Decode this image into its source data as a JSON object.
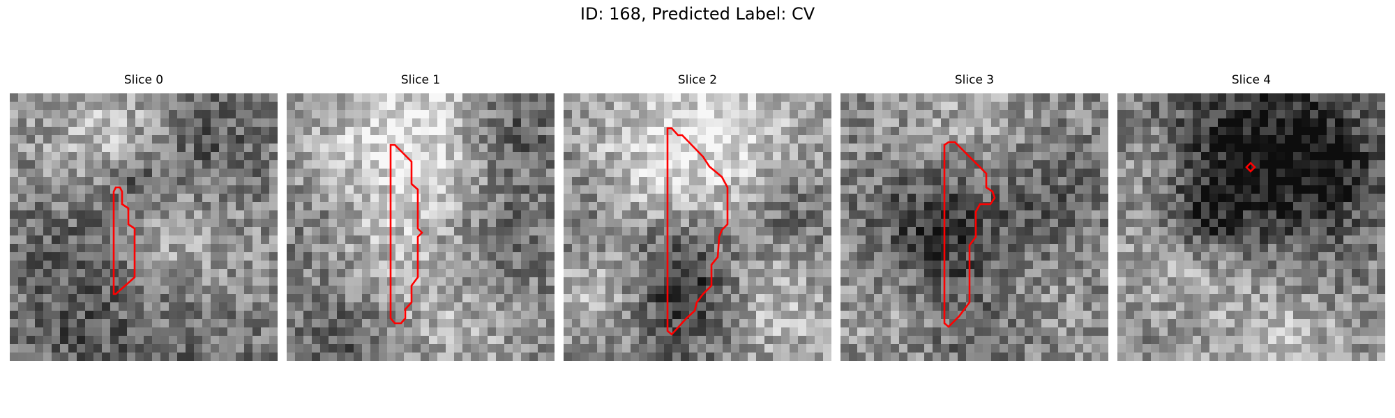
{
  "figure": {
    "title": "ID: 168, Predicted Label: CV"
  },
  "panels": [
    {
      "title": "Slice 0"
    },
    {
      "title": "Slice 1"
    },
    {
      "title": "Slice 2"
    },
    {
      "title": "Slice 3"
    },
    {
      "title": "Slice 4"
    }
  ],
  "colors": {
    "contour": "#ff0000"
  }
}
